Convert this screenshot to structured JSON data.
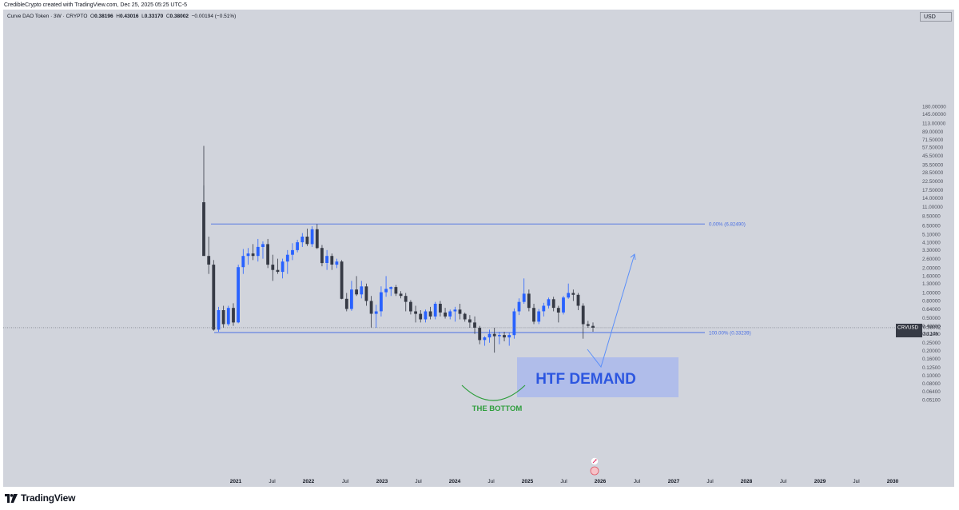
{
  "credit": "CredibleCrypto created with TradingView.com, Dec 25, 2025 05:25 UTC-5",
  "ohlc": {
    "symbol": "Curve DAO Token · 3W · CRYPTO",
    "o_label": "O",
    "o": "0.38196",
    "h_label": "H",
    "h": "0.43016",
    "l_label": "L",
    "l": "0.33170",
    "c_label": "C",
    "c": "0.38002",
    "change": "−0.00194 (−0.51%)"
  },
  "currency": "USD",
  "brand": "TradingView",
  "chart_data": {
    "type": "candlestick",
    "yscale": "log",
    "ylim": [
      0.04,
      225
    ],
    "price_ticks": [
      "180.00000",
      "145.00000",
      "113.00000",
      "89.00000",
      "71.50000",
      "57.50000",
      "45.50000",
      "35.50000",
      "28.50000",
      "22.50000",
      "17.50000",
      "14.00000",
      "11.00000",
      "8.50000",
      "6.50000",
      "5.10000",
      "4.10000",
      "3.30000",
      "2.60000",
      "2.00000",
      "1.60000",
      "1.30000",
      "1.00000",
      "0.80000",
      "0.64000",
      "0.50000",
      "0.40000",
      "0.32000",
      "0.25000",
      "0.20000",
      "0.16000",
      "0.12500",
      "0.10000",
      "0.08000",
      "0.06400",
      "0.05100"
    ],
    "time_ticks": [
      "2021",
      "Jul",
      "2022",
      "Jul",
      "2023",
      "Jul",
      "2024",
      "Jul",
      "2025",
      "Jul",
      "2026",
      "Jul",
      "2027",
      "Jul",
      "2028",
      "Jul",
      "2029",
      "Jul",
      "2030"
    ],
    "last_price": {
      "symbol": "CRVUSD",
      "value": "0.38002",
      "countdown": "3d 14h"
    },
    "fib_levels": [
      {
        "label": "0.00% (6.82490)",
        "value": 6.8249
      },
      {
        "label": "100.00% (0.33239)",
        "value": 0.33239
      }
    ],
    "annotations": {
      "demand_zone": "HTF DEMAND",
      "bottom": "THE BOTTOM"
    },
    "colors": {
      "up": "#2962ff",
      "down": "#363a45",
      "fib": "#4a6fe3",
      "zone": "#aab8ec",
      "zone_text": "#2c56e0",
      "bottom": "#2e9e3c",
      "arrow": "#5b8ff9",
      "background": "#d1d4dc"
    }
  }
}
